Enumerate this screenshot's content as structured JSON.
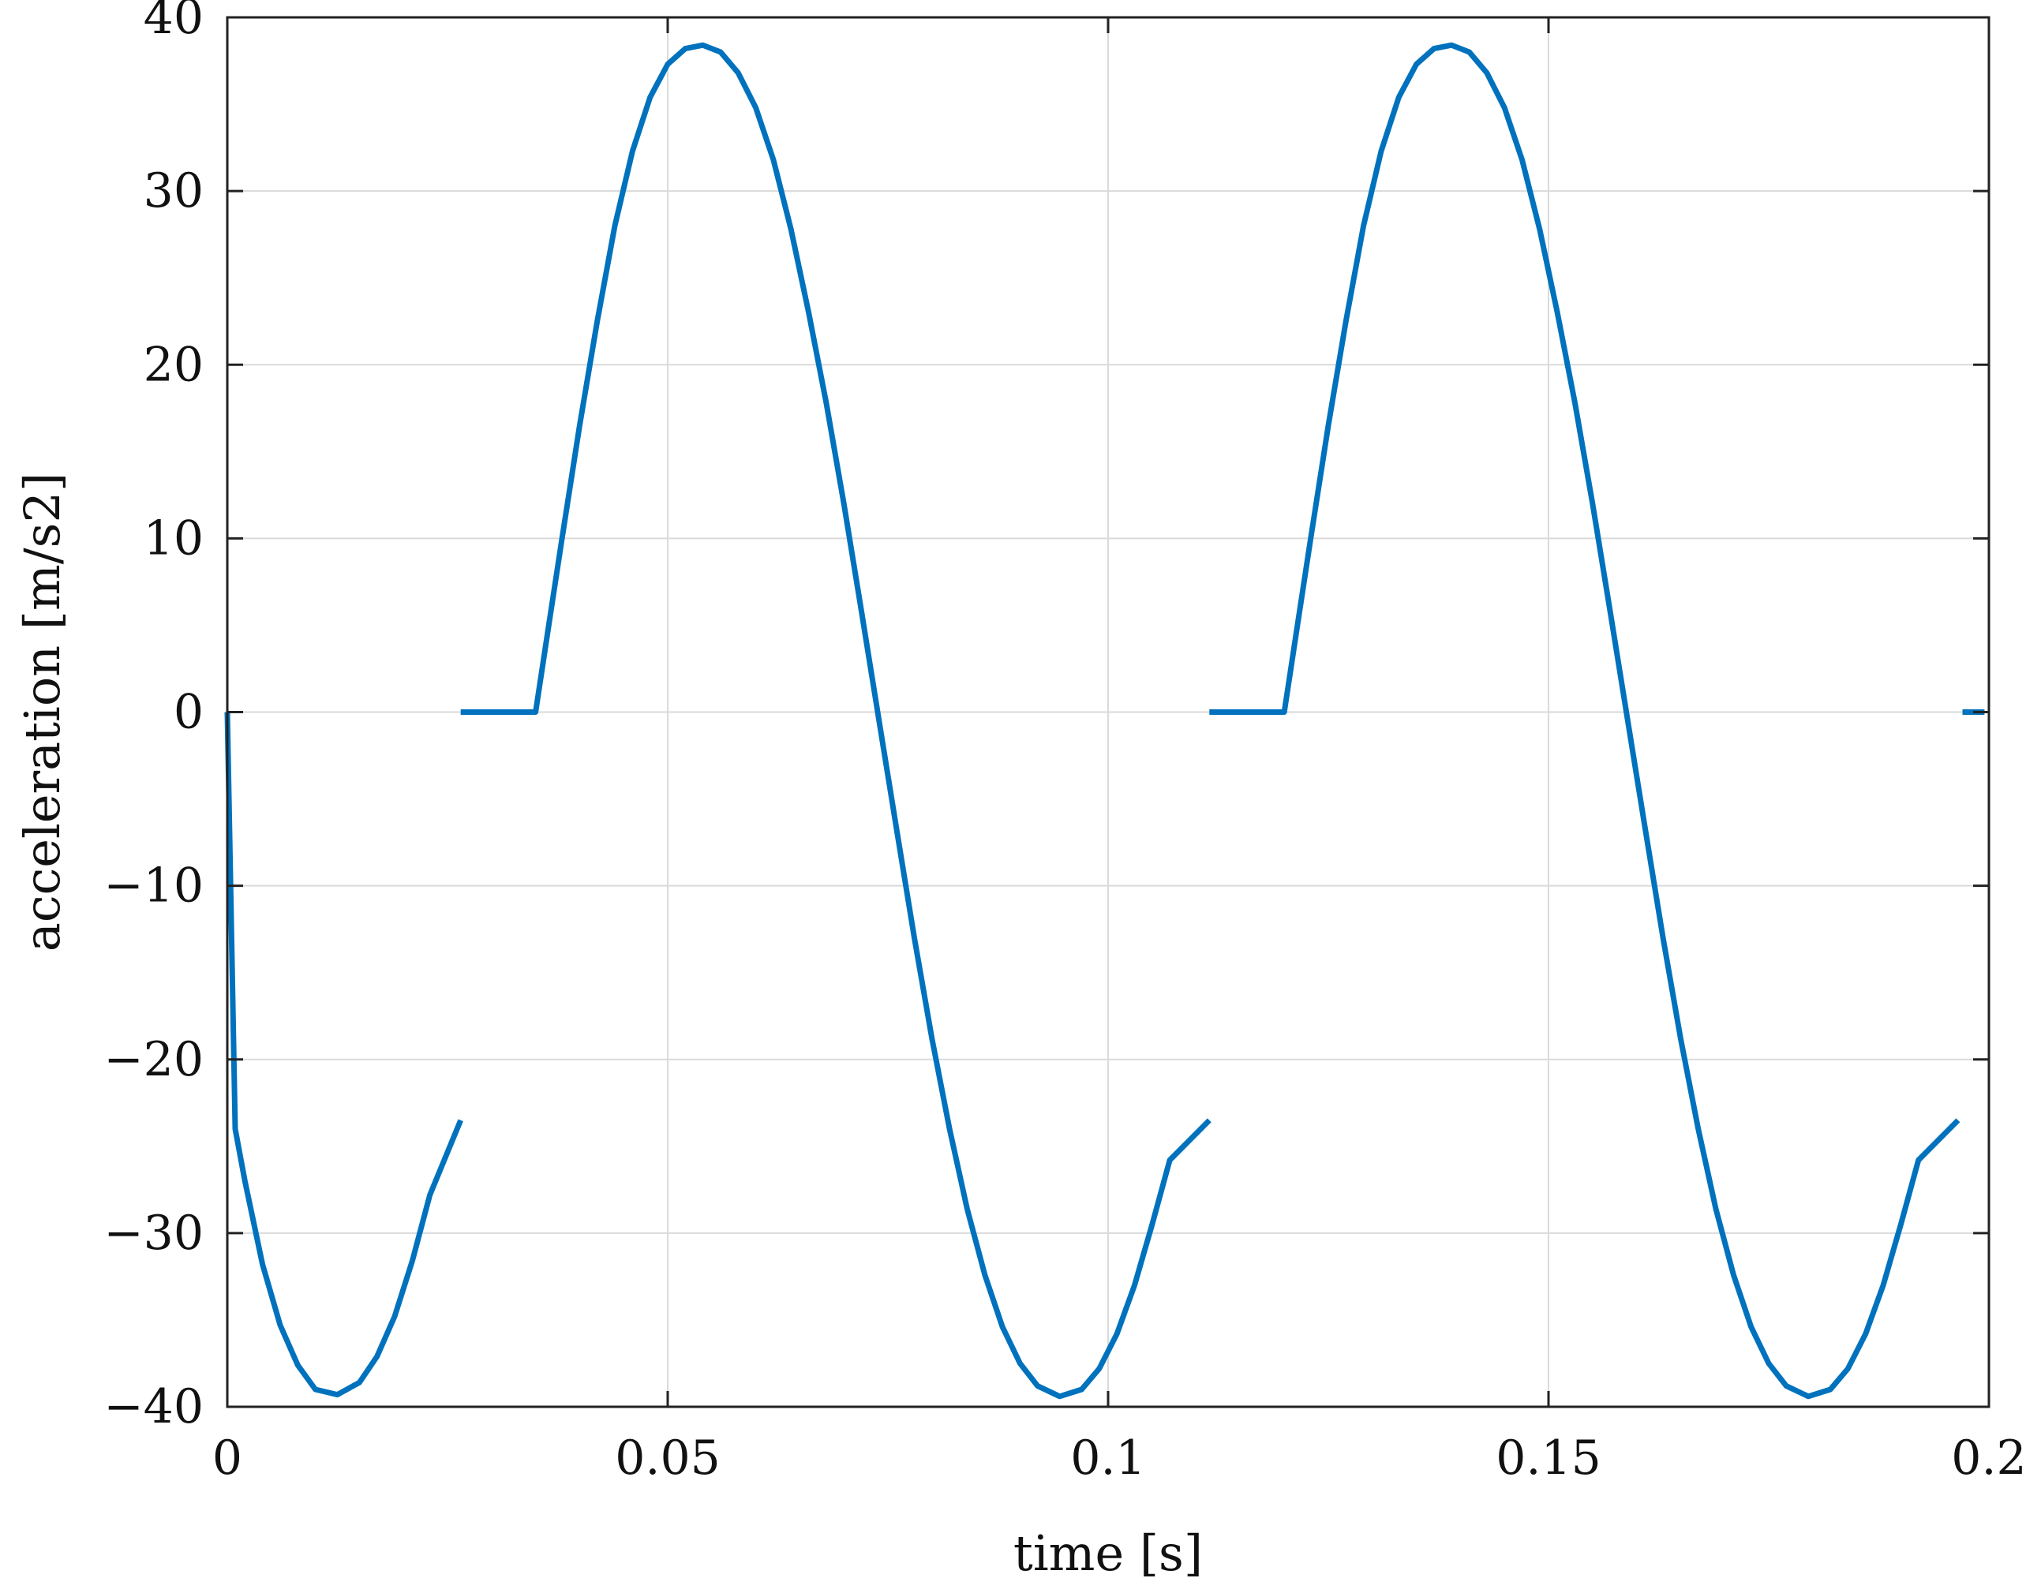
{
  "chart_data": {
    "type": "line",
    "xlabel": "time [s]",
    "ylabel": "acceleration [m/s2]",
    "xlim": [
      0,
      0.2
    ],
    "ylim": [
      -40,
      40
    ],
    "xticks": [
      0,
      0.05,
      0.1,
      0.15,
      0.2
    ],
    "xtick_labels": [
      "0",
      "0.05",
      "0.1",
      "0.15",
      "0.2"
    ],
    "yticks": [
      -40,
      -30,
      -20,
      -10,
      0,
      10,
      20,
      30,
      40
    ],
    "ytick_labels": [
      "−40",
      "−30",
      "−20",
      "−10",
      "0",
      "10",
      "20",
      "30",
      "40"
    ],
    "grid": true,
    "series_color": "#0072BD",
    "series": [
      {
        "segments": [
          [
            [
              0,
              0
            ],
            [
              0.0009,
              -24
            ],
            [
              0.002,
              -27
            ],
            [
              0.004,
              -31.8
            ],
            [
              0.006,
              -35.3
            ],
            [
              0.008,
              -37.6
            ],
            [
              0.01,
              -39.0
            ],
            [
              0.0125,
              -39.3
            ],
            [
              0.015,
              -38.6
            ],
            [
              0.017,
              -37.1
            ],
            [
              0.019,
              -34.8
            ],
            [
              0.021,
              -31.6
            ],
            [
              0.023,
              -27.8
            ],
            [
              0.0265,
              -23.5
            ]
          ],
          [
            [
              0.0265,
              0
            ],
            [
              0.035,
              0
            ],
            [
              0.0365,
              5
            ],
            [
              0.038,
              10
            ],
            [
              0.04,
              16.5
            ],
            [
              0.042,
              22.5
            ],
            [
              0.044,
              28.0
            ],
            [
              0.046,
              32.3
            ],
            [
              0.048,
              35.4
            ],
            [
              0.05,
              37.3
            ],
            [
              0.052,
              38.2
            ],
            [
              0.054,
              38.4
            ],
            [
              0.056,
              38.0
            ],
            [
              0.058,
              36.8
            ],
            [
              0.06,
              34.8
            ],
            [
              0.062,
              31.8
            ],
            [
              0.064,
              27.8
            ],
            [
              0.066,
              23.0
            ],
            [
              0.068,
              17.8
            ],
            [
              0.07,
              12.0
            ],
            [
              0.072,
              5.8
            ],
            [
              0.074,
              -0.5
            ],
            [
              0.076,
              -6.8
            ],
            [
              0.078,
              -13.0
            ],
            [
              0.08,
              -18.8
            ],
            [
              0.082,
              -24.0
            ],
            [
              0.084,
              -28.6
            ],
            [
              0.086,
              -32.4
            ],
            [
              0.088,
              -35.4
            ],
            [
              0.09,
              -37.5
            ],
            [
              0.092,
              -38.8
            ],
            [
              0.0945,
              -39.4
            ],
            [
              0.097,
              -39.0
            ],
            [
              0.099,
              -37.8
            ],
            [
              0.101,
              -35.8
            ],
            [
              0.103,
              -33.0
            ],
            [
              0.105,
              -29.5
            ],
            [
              0.107,
              -25.8
            ],
            [
              0.1115,
              -23.5
            ]
          ],
          [
            [
              0.1115,
              0
            ],
            [
              0.12,
              0
            ],
            [
              0.1215,
              5
            ],
            [
              0.123,
              10
            ],
            [
              0.125,
              16.5
            ],
            [
              0.127,
              22.5
            ],
            [
              0.129,
              28.0
            ],
            [
              0.131,
              32.3
            ],
            [
              0.133,
              35.4
            ],
            [
              0.135,
              37.3
            ],
            [
              0.137,
              38.2
            ],
            [
              0.139,
              38.4
            ],
            [
              0.141,
              38.0
            ],
            [
              0.143,
              36.8
            ],
            [
              0.145,
              34.8
            ],
            [
              0.147,
              31.8
            ],
            [
              0.149,
              27.8
            ],
            [
              0.151,
              23.0
            ],
            [
              0.153,
              17.8
            ],
            [
              0.155,
              12.0
            ],
            [
              0.157,
              5.8
            ],
            [
              0.159,
              -0.5
            ],
            [
              0.161,
              -6.8
            ],
            [
              0.163,
              -13.0
            ],
            [
              0.165,
              -18.8
            ],
            [
              0.167,
              -24.0
            ],
            [
              0.169,
              -28.6
            ],
            [
              0.171,
              -32.4
            ],
            [
              0.173,
              -35.4
            ],
            [
              0.175,
              -37.5
            ],
            [
              0.177,
              -38.8
            ],
            [
              0.1795,
              -39.4
            ],
            [
              0.182,
              -39.0
            ],
            [
              0.184,
              -37.8
            ],
            [
              0.186,
              -35.8
            ],
            [
              0.188,
              -33.0
            ],
            [
              0.19,
              -29.5
            ],
            [
              0.192,
              -25.8
            ],
            [
              0.1965,
              -23.5
            ]
          ],
          [
            [
              0.197,
              0
            ],
            [
              0.1995,
              0
            ]
          ]
        ]
      }
    ]
  }
}
